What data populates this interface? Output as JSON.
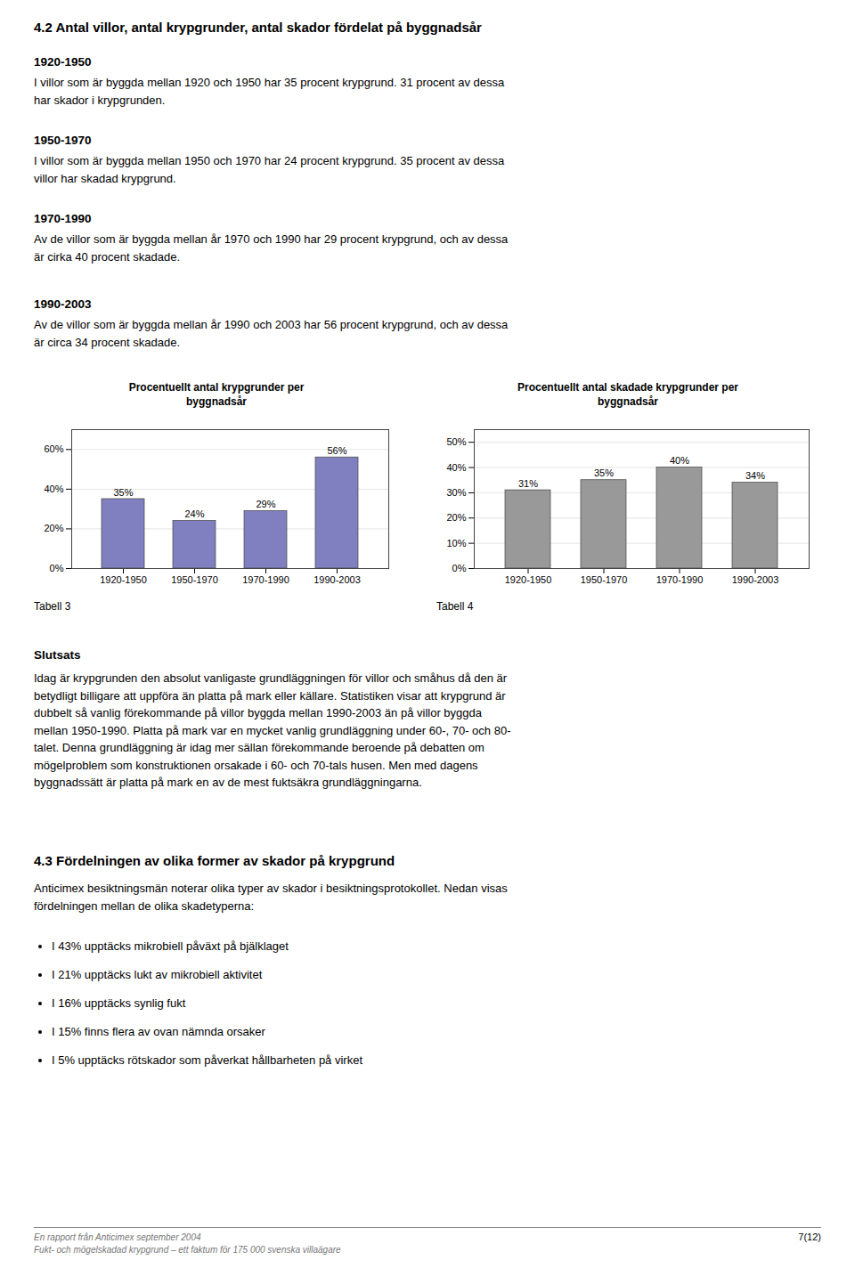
{
  "page_title": "4.2 Antal villor, antal krypgrunder, antal skador fördelat på byggnadsår",
  "sections": [
    {
      "heading": "1920-1950",
      "text": "I villor som är byggda mellan 1920 och 1950 har 35 procent krypgrund. 31 procent av dessa\nhar skador i krypgrunden."
    },
    {
      "heading": "1950-1970",
      "text": "I villor som är byggda mellan 1950 och 1970 har 24 procent krypgrund. 35 procent av dessa\nvillor har skadad krypgrund."
    },
    {
      "heading": "1970-1990",
      "text": "Av de villor som är byggda mellan år 1970 och 1990 har 29 procent krypgrund, och av dessa\när cirka 40 procent skadade."
    },
    {
      "heading": "1990-2003",
      "text": "Av de villor som är byggda mellan år 1990 och 2003 har 56 procent krypgrund, och av dessa\när circa 34 procent skadade."
    }
  ],
  "chart_data": [
    {
      "type": "bar",
      "title": "Procentuellt antal krypgrunder per\nbyggnadsår",
      "categories": [
        "1920-1950",
        "1950-1970",
        "1970-1990",
        "1990-2003"
      ],
      "values": [
        35,
        24,
        29,
        56
      ],
      "value_labels": [
        "35%",
        "24%",
        "29%",
        "56%"
      ],
      "data_labels": true,
      "color": "#8080c0",
      "ylim": [
        0,
        70
      ],
      "yticks": [
        {
          "value": 0,
          "label": "0%"
        },
        {
          "value": 20,
          "label": "20%"
        },
        {
          "value": 40,
          "label": "40%"
        },
        {
          "value": 60,
          "label": "60%"
        }
      ],
      "grid": true
    },
    {
      "type": "bar",
      "title": "Procentuellt antal skadade krypgrunder per\nbyggnadsår",
      "categories": [
        "1920-1950",
        "1950-1970",
        "1970-1990",
        "1990-2003"
      ],
      "values": [
        31,
        35,
        40,
        34
      ],
      "value_labels": [
        "31%",
        "35%",
        "40%",
        "34%"
      ],
      "data_labels": true,
      "color": "#999999",
      "ylim": [
        0,
        55
      ],
      "yticks": [
        {
          "value": 0,
          "label": "0%"
        },
        {
          "value": 10,
          "label": "10%"
        },
        {
          "value": 20,
          "label": "20%"
        },
        {
          "value": 30,
          "label": "30%"
        },
        {
          "value": 40,
          "label": "40%"
        },
        {
          "value": 50,
          "label": "50%"
        }
      ],
      "grid": true
    }
  ],
  "captions": [
    "Tabell 3",
    "Tabell 4"
  ],
  "conclusion": {
    "heading": "Slutsats",
    "text": "Idag är krypgrunden den absolut vanligaste grundläggningen för villor och småhus då den är\nbetydligt billigare att uppföra än platta på mark eller källare. Statistiken visar att krypgrund är\ndubbelt så vanlig förekommande på villor byggda mellan 1990-2003 än på villor byggda\nmellan 1950-1990. Platta på mark var en mycket vanlig grundläggning under 60-, 70- och 80-\ntalet. Denna grundläggning är idag mer sällan förekommande beroende på debatten om\nmögelproblem som konstruktionen orsakade i 60- och 70-tals husen. Men med dagens\nbyggnadssätt är platta på mark en av de mest fuktsäkra grundläggningarna."
  },
  "section43": {
    "heading": "4.3 Fördelningen av olika former av skador på krypgrund",
    "text": "Anticimex besiktningsmän noterar olika typer av skador i besiktningsprotokollet. Nedan visas\nfördelningen mellan de olika skadetyperna:",
    "bullets": [
      "I 43% upptäcks mikrobiell påväxt på bjälklaget",
      "I 21% upptäcks lukt av mikrobiell aktivitet",
      "I 16% upptäcks synlig fukt",
      "I 15% finns flera av ovan nämnda orsaker",
      "I 5% upptäcks rötskador som påverkat hållbarheten på virket"
    ]
  },
  "footer": {
    "left": "En rapport från Anticimex september 2004\nFukt- och mögelskadad krypgrund – ett faktum för 175 000 svenska villaägare",
    "right": "7(12)"
  }
}
